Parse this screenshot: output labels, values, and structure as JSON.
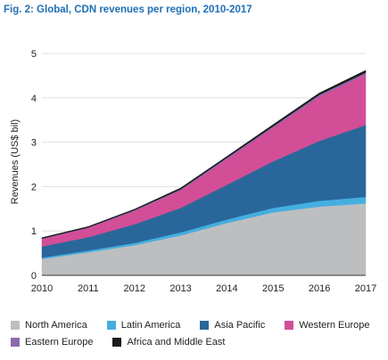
{
  "figure": {
    "title": "Fig. 2: Global, CDN revenues per region, 2010-2017"
  },
  "chart_data": {
    "type": "area",
    "stacked": true,
    "title": "Fig. 2: Global, CDN revenues per region, 2010-2017",
    "xlabel": "",
    "ylabel": "Revenues (US$ bil)",
    "x": [
      2010,
      2011,
      2012,
      2013,
      2014,
      2015,
      2016,
      2017
    ],
    "yticks": [
      0,
      1,
      2,
      3,
      4,
      5
    ],
    "ylim": [
      0,
      5
    ],
    "grid": true,
    "legend_position": "bottom",
    "series": [
      {
        "name": "North America",
        "color": "#bdbec0",
        "values": [
          0.37,
          0.52,
          0.68,
          0.9,
          1.18,
          1.42,
          1.55,
          1.62
        ]
      },
      {
        "name": "Latin America",
        "color": "#45aee0",
        "values": [
          0.03,
          0.04,
          0.05,
          0.07,
          0.08,
          0.1,
          0.13,
          0.15
        ]
      },
      {
        "name": "Asia Pacific",
        "color": "#29679a",
        "values": [
          0.25,
          0.3,
          0.42,
          0.55,
          0.78,
          1.05,
          1.35,
          1.62
        ]
      },
      {
        "name": "Western Europe",
        "color": "#d24e97",
        "values": [
          0.17,
          0.21,
          0.3,
          0.4,
          0.58,
          0.76,
          1.0,
          1.14
        ]
      },
      {
        "name": "Eastern Europe",
        "color": "#8a6aad",
        "values": [
          0.01,
          0.01,
          0.02,
          0.02,
          0.03,
          0.03,
          0.04,
          0.04
        ]
      },
      {
        "name": "Africa and Middle East",
        "color": "#1b1b1b",
        "values": [
          0.02,
          0.02,
          0.02,
          0.03,
          0.03,
          0.04,
          0.04,
          0.05
        ]
      }
    ]
  }
}
